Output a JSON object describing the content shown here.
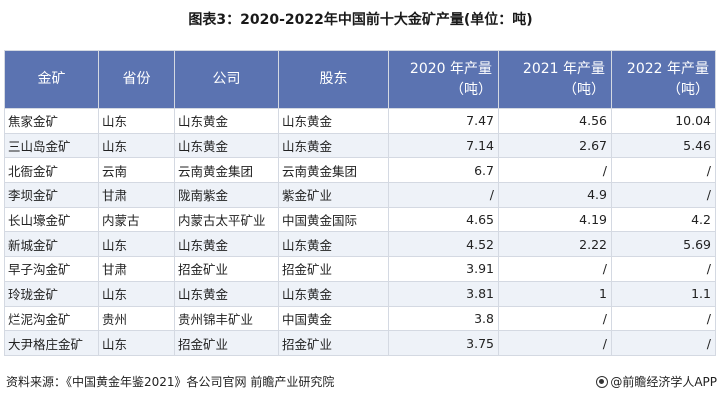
{
  "title": "图表3：2020-2022年中国前十大金矿产量(单位：吨)",
  "table": {
    "headers": [
      {
        "label": "金矿",
        "unit": ""
      },
      {
        "label": "省份",
        "unit": ""
      },
      {
        "label": "公司",
        "unit": ""
      },
      {
        "label": "股东",
        "unit": ""
      },
      {
        "label": "2020 年产量",
        "unit": "（吨）"
      },
      {
        "label": "2021 年产量",
        "unit": "（吨）"
      },
      {
        "label": "2022 年产量",
        "unit": "（吨）"
      }
    ],
    "rows": [
      [
        "焦家金矿",
        "山东",
        "山东黄金",
        "山东黄金",
        "7.47",
        "4.56",
        "10.04"
      ],
      [
        "三山岛金矿",
        "山东",
        "山东黄金",
        "山东黄金",
        "7.14",
        "2.67",
        "5.46"
      ],
      [
        "北衙金矿",
        "云南",
        "云南黄金集团",
        "云南黄金集团",
        "6.7",
        "/",
        "/"
      ],
      [
        "李坝金矿",
        "甘肃",
        "陇南紫金",
        "紫金矿业",
        "/",
        "4.9",
        "/"
      ],
      [
        "长山壕金矿",
        "内蒙古",
        "内蒙古太平矿业",
        "中国黄金国际",
        "4.65",
        "4.19",
        "4.2"
      ],
      [
        "新城金矿",
        "山东",
        "山东黄金",
        "山东黄金",
        "4.52",
        "2.22",
        "5.69"
      ],
      [
        "早子沟金矿",
        "甘肃",
        "招金矿业",
        "招金矿业",
        "3.91",
        "/",
        "/"
      ],
      [
        "玲珑金矿",
        "山东",
        "山东黄金",
        "山东黄金",
        "3.81",
        "1",
        "1.1"
      ],
      [
        "烂泥沟金矿",
        "贵州",
        "贵州锦丰矿业",
        "中国黄金",
        "3.8",
        "/",
        "/"
      ],
      [
        "大尹格庄金矿",
        "山东",
        "招金矿业",
        "招金矿业",
        "3.75",
        "/",
        "/"
      ]
    ]
  },
  "footer": {
    "source": "资料来源：《中国黄金年鉴2021》各公司官网 前瞻产业研究院",
    "brand": "@前瞻经济学人APP",
    "brand_icon": "qianzhan-logo-icon"
  }
}
